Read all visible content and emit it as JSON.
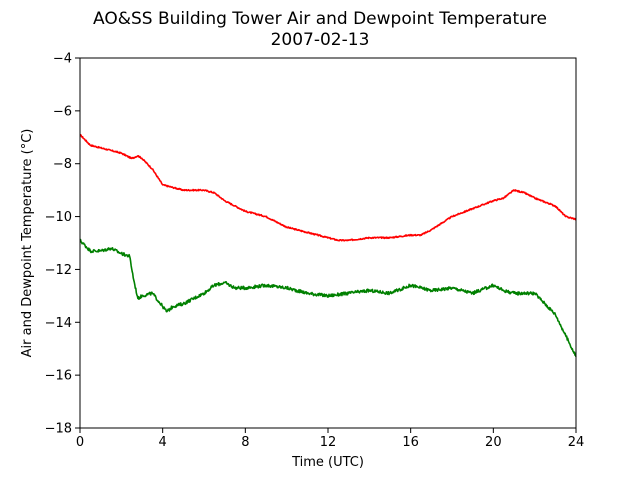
{
  "chart_data": {
    "type": "line",
    "title": "AO&SS Building Tower Air and Dewpoint Temperature",
    "subtitle": "2007-02-13",
    "xlabel": "Time (UTC)",
    "ylabel": "Air and Dewpoint Temperature (°C)",
    "xlim": [
      0,
      24
    ],
    "ylim": [
      -18,
      -4
    ],
    "xticks": [
      0,
      4,
      8,
      12,
      16,
      20,
      24
    ],
    "yticks": [
      -18,
      -16,
      -14,
      -12,
      -10,
      -8,
      -6,
      -4
    ],
    "grid": false,
    "series": [
      {
        "color": "#ff0000",
        "x": [
          0,
          0.5,
          1,
          1.5,
          2,
          2.5,
          2.8,
          3,
          3.5,
          4,
          4.5,
          5,
          6,
          6.5,
          7,
          7.5,
          8,
          9,
          10,
          11,
          12,
          12.5,
          13,
          14,
          15,
          16,
          16.5,
          17,
          18,
          19,
          20,
          20.5,
          21,
          21.5,
          22,
          23,
          23.5,
          24
        ],
        "y": [
          -6.9,
          -7.3,
          -7.4,
          -7.5,
          -7.6,
          -7.8,
          -7.7,
          -7.8,
          -8.2,
          -8.8,
          -8.9,
          -9.0,
          -9.0,
          -9.1,
          -9.4,
          -9.6,
          -9.8,
          -10.0,
          -10.4,
          -10.6,
          -10.8,
          -10.9,
          -10.9,
          -10.8,
          -10.8,
          -10.7,
          -10.7,
          -10.5,
          -10.0,
          -9.7,
          -9.4,
          -9.3,
          -9.0,
          -9.1,
          -9.3,
          -9.6,
          -10.0,
          -10.1
        ]
      },
      {
        "color": "#008000",
        "x": [
          0,
          0.5,
          1,
          1.5,
          2,
          2.4,
          2.6,
          2.8,
          3,
          3.5,
          4,
          4.2,
          4.5,
          5,
          6,
          6.5,
          7,
          7.5,
          8,
          9,
          10,
          11,
          12,
          13,
          14,
          15,
          16,
          16.5,
          17,
          18,
          19,
          20,
          20.5,
          21,
          22,
          22.5,
          23,
          23.5,
          24
        ],
        "y": [
          -10.9,
          -11.3,
          -11.3,
          -11.2,
          -11.4,
          -11.5,
          -12.4,
          -13.1,
          -13.0,
          -12.9,
          -13.4,
          -13.6,
          -13.4,
          -13.3,
          -12.9,
          -12.6,
          -12.5,
          -12.7,
          -12.7,
          -12.6,
          -12.7,
          -12.9,
          -13.0,
          -12.9,
          -12.8,
          -12.9,
          -12.6,
          -12.7,
          -12.8,
          -12.7,
          -12.9,
          -12.6,
          -12.8,
          -12.9,
          -12.9,
          -13.3,
          -13.7,
          -14.5,
          -15.3
        ]
      }
    ]
  }
}
